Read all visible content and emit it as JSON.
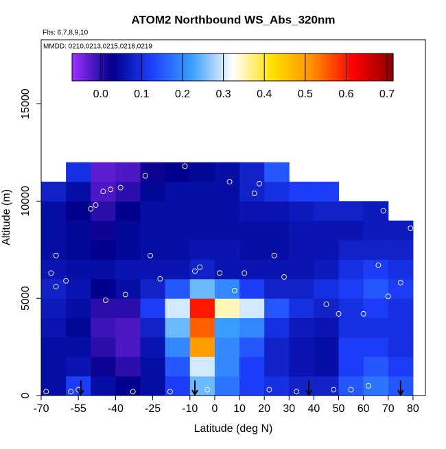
{
  "chart_data": {
    "type": "heatmap",
    "title": "ATOM2 Northbound WS_Abs_320nm",
    "subtitle": "Flts: 6,7,8,9,10",
    "annotation": "MMDD: 0210,0213,0215,0218,0219",
    "xlabel": "Latitude (deg N)",
    "ylabel": "Altitude (m)",
    "xlim": [
      -70,
      85
    ],
    "ylim": [
      0,
      18300
    ],
    "xticks": [
      -70,
      -55,
      -40,
      -25,
      -10,
      0,
      10,
      20,
      30,
      40,
      50,
      60,
      70,
      80
    ],
    "yticks": [
      0,
      5000,
      10000,
      15000
    ],
    "x_edges": [
      -70,
      -60,
      -50,
      -40,
      -30,
      -20,
      -10,
      0,
      10,
      20,
      30,
      40,
      50,
      60,
      70,
      80
    ],
    "y_edges": [
      0,
      1000,
      2000,
      3000,
      4000,
      5000,
      6000,
      7000,
      8000,
      9000,
      10000,
      11000,
      12000
    ],
    "z": [
      [
        0.05,
        0.12,
        0.05,
        0.03,
        0.05,
        0.12,
        0.25,
        0.18,
        0.12,
        0.1,
        0.08,
        0.08,
        0.15,
        0.18,
        0.15
      ],
      [
        0.05,
        0.06,
        0.02,
        0.0,
        0.05,
        0.15,
        0.3,
        0.2,
        0.12,
        0.08,
        0.06,
        0.05,
        0.12,
        0.15,
        0.12
      ],
      [
        0.05,
        0.05,
        0.0,
        -0.02,
        0.06,
        0.2,
        0.5,
        0.2,
        0.15,
        0.08,
        0.06,
        0.05,
        0.12,
        0.12,
        0.1
      ],
      [
        0.06,
        0.04,
        -0.01,
        -0.02,
        0.08,
        0.25,
        0.55,
        0.22,
        0.2,
        0.1,
        0.07,
        0.06,
        0.1,
        0.1,
        0.1
      ],
      [
        0.07,
        0.05,
        0.0,
        0.0,
        0.12,
        0.3,
        0.6,
        0.35,
        0.3,
        0.15,
        0.1,
        0.08,
        0.1,
        0.12,
        0.1
      ],
      [
        0.08,
        0.06,
        0.03,
        0.05,
        0.08,
        0.15,
        0.25,
        0.2,
        0.12,
        0.08,
        0.08,
        0.1,
        0.12,
        0.15,
        0.12
      ],
      [
        0.06,
        0.05,
        0.05,
        0.06,
        0.06,
        0.06,
        0.08,
        0.06,
        0.06,
        0.06,
        0.06,
        0.07,
        0.1,
        0.12,
        0.1
      ],
      [
        0.05,
        0.04,
        0.03,
        0.04,
        0.05,
        0.05,
        0.06,
        0.06,
        0.05,
        0.05,
        0.06,
        0.06,
        0.08,
        0.08,
        0.08
      ],
      [
        0.05,
        0.04,
        0.02,
        0.04,
        0.05,
        0.05,
        0.05,
        0.05,
        0.05,
        0.05,
        0.06,
        0.06,
        0.06,
        0.07,
        0.07
      ],
      [
        0.05,
        0.03,
        0.0,
        0.03,
        0.05,
        0.05,
        0.05,
        0.05,
        0.06,
        0.06,
        0.07,
        0.08,
        0.08,
        0.07,
        null
      ],
      [
        0.08,
        0.05,
        -0.02,
        0.0,
        0.04,
        0.05,
        0.05,
        0.05,
        0.08,
        0.1,
        0.12,
        0.12,
        null,
        null,
        null
      ],
      [
        null,
        0.1,
        -0.03,
        -0.02,
        0.02,
        0.03,
        0.04,
        0.05,
        0.08,
        0.15,
        null,
        null,
        null,
        null,
        null
      ]
    ],
    "clim": [
      -0.07,
      0.715
    ],
    "colorscale": [
      "#9b30ff",
      "#00008b",
      "#1e40ff",
      "#3aa0ff",
      "#ffffff",
      "#ffe000",
      "#ff8c00",
      "#ff0000",
      "#8b0000"
    ],
    "cticks": [
      {
        "value": 0,
        "label": "0.0"
      },
      0.1,
      0.2,
      0.3,
      0.4,
      0.5,
      0.6,
      0.7
    ],
    "samples": {
      "x": [
        -68,
        -66,
        -64,
        -60,
        -58,
        -55,
        -50,
        -48,
        -45,
        -42,
        -38,
        -33,
        -28,
        -22,
        -18,
        -12,
        -6,
        -3,
        2,
        8,
        12,
        18,
        22,
        28,
        33,
        38,
        45,
        50,
        55,
        60,
        66,
        70,
        75,
        79,
        -64,
        -44,
        -36,
        -26,
        -8,
        6,
        16,
        24,
        48,
        62,
        68
      ],
      "y": [
        200,
        6300,
        5600,
        5900,
        200,
        300,
        9600,
        9800,
        10500,
        10600,
        10700,
        200,
        11300,
        6000,
        200,
        11800,
        6600,
        300,
        6300,
        5400,
        6300,
        10900,
        300,
        6100,
        200,
        11700,
        4700,
        4200,
        300,
        4200,
        6700,
        5100,
        5800,
        8600,
        7200,
        4900,
        5200,
        7200,
        6400,
        11000,
        10400,
        7200,
        300,
        500,
        9500
      ]
    },
    "flight_markers": [
      -54,
      -8,
      38,
      75
    ]
  }
}
